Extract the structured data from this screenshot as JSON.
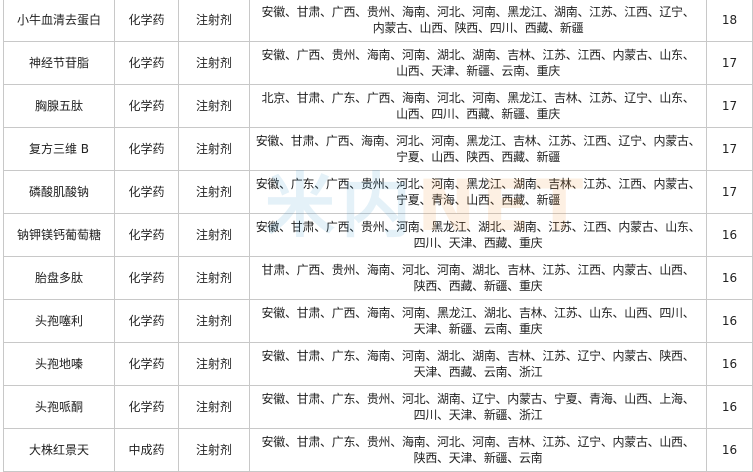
{
  "rows": [
    {
      "name": "小牛血清去蛋白",
      "type": "化学药",
      "form": "注射剂",
      "provinces": [
        "安徽、甘肃、广西、贵州、海南、河北、河南、黑龙江、湖南、江苏、江西、辽宁、",
        "内蒙古、山西、陕西、四川、西藏、新疆"
      ],
      "count": "18"
    },
    {
      "name": "神经节苷脂",
      "type": "化学药",
      "form": "注射剂",
      "provinces": [
        "安徽、广西、贵州、海南、河南、湖北、湖南、吉林、江苏、江西、内蒙古、山东、",
        "山西、天津、新疆、云南、重庆"
      ],
      "count": "17"
    },
    {
      "name": "胸腺五肽",
      "type": "化学药",
      "form": "注射剂",
      "provinces": [
        "北京、甘肃、广东、广西、海南、河北、河南、黑龙江、吉林、江苏、辽宁、山东、",
        "山西、四川、西藏、新疆、重庆"
      ],
      "count": "17"
    },
    {
      "name": "复方三维 B",
      "type": "化学药",
      "form": "注射剂",
      "provinces": [
        "安徽、甘肃、广西、海南、河北、河南、黑龙江、吉林、江苏、江西、辽宁、内蒙古、",
        "宁夏、山西、陕西、西藏、新疆"
      ],
      "count": "17"
    },
    {
      "name": "磷酸肌酸钠",
      "type": "化学药",
      "form": "注射剂",
      "provinces": [
        "安徽、广东、广西、贵州、河北、河南、黑龙江、湖南、吉林、江苏、江西、内蒙古、",
        "宁夏、青海、山西、西藏、新疆"
      ],
      "count": "17"
    },
    {
      "name": "钠钾镁钙葡萄糖",
      "type": "化学药",
      "form": "注射剂",
      "provinces": [
        "安徽、甘肃、广西、贵州、河南、黑龙江、湖北、湖南、江苏、江西、内蒙古、山东、",
        "四川、天津、西藏、重庆"
      ],
      "count": "16"
    },
    {
      "name": "胎盘多肽",
      "type": "化学药",
      "form": "注射剂",
      "provinces": [
        "甘肃、广西、贵州、海南、河北、河南、湖北、吉林、江苏、江西、内蒙古、山西、",
        "陕西、西藏、新疆、重庆"
      ],
      "count": "16"
    },
    {
      "name": "头孢噻利",
      "type": "化学药",
      "form": "注射剂",
      "provinces": [
        "安徽、甘肃、广西、海南、河南、黑龙江、湖北、吉林、江苏、山东、山西、四川、",
        "天津、新疆、云南、重庆"
      ],
      "count": "16"
    },
    {
      "name": "头孢地嗪",
      "type": "化学药",
      "form": "注射剂",
      "provinces": [
        "安徽、甘肃、广东、海南、河南、湖北、湖南、吉林、江苏、辽宁、内蒙古、陕西、",
        "天津、西藏、云南、浙江"
      ],
      "count": "16"
    },
    {
      "name": "头孢哌酮",
      "type": "化学药",
      "form": "注射剂",
      "provinces": [
        "安徽、甘肃、广东、贵州、河北、湖南、辽宁、内蒙古、宁夏、青海、山西、上海、",
        "四川、天津、新疆、浙江"
      ],
      "count": "16"
    },
    {
      "name": "大株红景天",
      "type": "中成药",
      "form": "注射剂",
      "provinces": [
        "安徽、甘肃、广东、贵州、海南、河北、河南、吉林、江苏、辽宁、内蒙古、山西、",
        "陕西、天津、新疆、云南"
      ],
      "count": "16"
    }
  ],
  "watermark": {
    "part1": "米内",
    "part2": "NET"
  }
}
